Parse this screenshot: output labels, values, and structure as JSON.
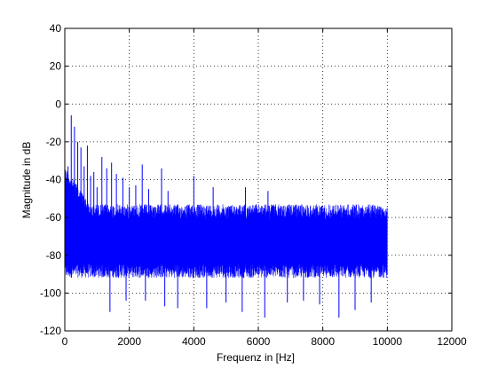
{
  "chart_data": {
    "type": "line",
    "title": "",
    "xlabel": "Frequenz in [Hz]",
    "ylabel": "Magnitude in dB",
    "xlim": [
      0,
      12000
    ],
    "ylim": [
      -120,
      40
    ],
    "xticks": [
      0,
      2000,
      4000,
      6000,
      8000,
      10000,
      12000
    ],
    "yticks": [
      40,
      20,
      0,
      -20,
      -40,
      -60,
      -80,
      -100,
      -120
    ],
    "xtick_labels": [
      "0",
      "2000",
      "4000",
      "6000",
      "8000",
      "10000",
      "12000"
    ],
    "ytick_labels": [
      "40",
      "20",
      "0",
      "-20",
      "-40",
      "-60",
      "-80",
      "-100",
      "-120"
    ],
    "grid": true,
    "grid_style": "dotted",
    "series": [
      {
        "color": "#0000ff",
        "description_of_band": "dense noise floor from 0 to 10000 Hz",
        "noise_floor": {
          "x_range": [
            0,
            10000
          ],
          "upper_db": -53,
          "lower_db": -92
        },
        "peaks": [
          {
            "x": 100,
            "y": -33
          },
          {
            "x": 200,
            "y": -6
          },
          {
            "x": 300,
            "y": -12
          },
          {
            "x": 400,
            "y": -20
          },
          {
            "x": 500,
            "y": -23
          },
          {
            "x": 600,
            "y": -33
          },
          {
            "x": 700,
            "y": -22
          },
          {
            "x": 800,
            "y": -38
          },
          {
            "x": 900,
            "y": -36
          },
          {
            "x": 1000,
            "y": -44
          },
          {
            "x": 1150,
            "y": -28
          },
          {
            "x": 1300,
            "y": -34
          },
          {
            "x": 1450,
            "y": -31
          },
          {
            "x": 1600,
            "y": -37
          },
          {
            "x": 1800,
            "y": -39
          },
          {
            "x": 2000,
            "y": -44
          },
          {
            "x": 2200,
            "y": -43
          },
          {
            "x": 2400,
            "y": -32
          },
          {
            "x": 2600,
            "y": -45
          },
          {
            "x": 3000,
            "y": -34
          },
          {
            "x": 3200,
            "y": -46
          },
          {
            "x": 4000,
            "y": -38
          },
          {
            "x": 4600,
            "y": -44
          },
          {
            "x": 5600,
            "y": -44
          },
          {
            "x": 6300,
            "y": -46
          }
        ],
        "dips": [
          {
            "x": 1400,
            "y": -110
          },
          {
            "x": 1900,
            "y": -104
          },
          {
            "x": 2500,
            "y": -104
          },
          {
            "x": 3100,
            "y": -107
          },
          {
            "x": 3500,
            "y": -108
          },
          {
            "x": 4400,
            "y": -108
          },
          {
            "x": 5000,
            "y": -105
          },
          {
            "x": 5500,
            "y": -110
          },
          {
            "x": 6200,
            "y": -113
          },
          {
            "x": 6900,
            "y": -105
          },
          {
            "x": 7400,
            "y": -104
          },
          {
            "x": 7900,
            "y": -106
          },
          {
            "x": 8500,
            "y": -113
          },
          {
            "x": 9000,
            "y": -109
          },
          {
            "x": 9500,
            "y": -105
          }
        ]
      }
    ]
  }
}
